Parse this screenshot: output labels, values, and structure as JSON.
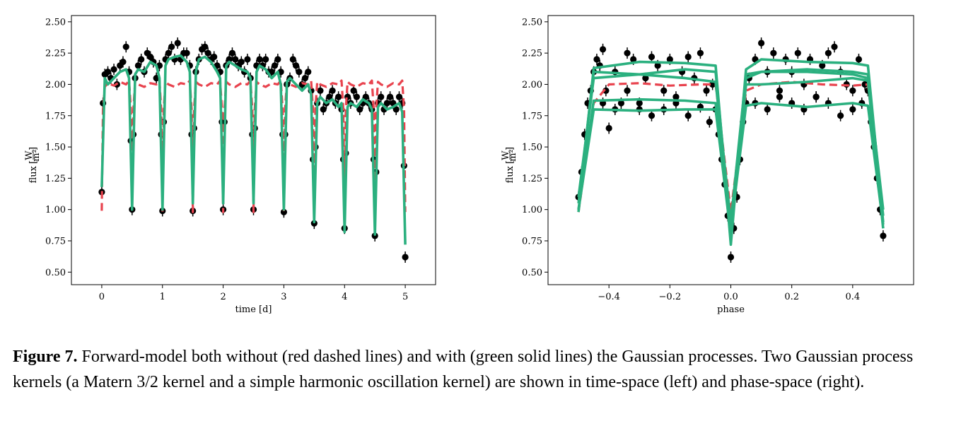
{
  "chart_data": [
    {
      "type": "scatter",
      "title": "",
      "xlabel": "time [d]",
      "ylabel": "flux [W/m²]",
      "ylabel_main": "flux",
      "ylabel_num": "W",
      "ylabel_den": "m²",
      "xlim": [
        -0.5,
        5.5
      ],
      "ylim": [
        0.4,
        2.55
      ],
      "xticks": [
        0,
        1,
        2,
        3,
        4,
        5
      ],
      "xtick_labels": [
        "0",
        "1",
        "2",
        "3",
        "4",
        "5"
      ],
      "yticks": [
        0.5,
        0.75,
        1.0,
        1.25,
        1.5,
        1.75,
        2.0,
        2.25,
        2.5
      ],
      "ytick_labels": [
        "0.50",
        "0.75",
        "1.00",
        "1.25",
        "1.50",
        "1.75",
        "2.00",
        "2.25",
        "2.50"
      ],
      "grid": false,
      "series": [
        {
          "kind": "errorbar",
          "color": "#000000",
          "x": [
            0.0,
            0.02,
            0.05,
            0.1,
            0.15,
            0.2,
            0.25,
            0.3,
            0.35,
            0.4,
            0.45,
            0.48,
            0.5,
            0.52,
            0.55,
            0.6,
            0.65,
            0.7,
            0.75,
            0.8,
            0.85,
            0.9,
            0.95,
            0.98,
            1.0,
            1.02,
            1.05,
            1.1,
            1.15,
            1.2,
            1.25,
            1.3,
            1.35,
            1.4,
            1.45,
            1.48,
            1.5,
            1.52,
            1.55,
            1.6,
            1.65,
            1.7,
            1.75,
            1.8,
            1.85,
            1.9,
            1.95,
            1.98,
            2.0,
            2.02,
            2.05,
            2.1,
            2.15,
            2.2,
            2.25,
            2.3,
            2.35,
            2.4,
            2.45,
            2.48,
            2.5,
            2.52,
            2.55,
            2.6,
            2.65,
            2.7,
            2.75,
            2.8,
            2.85,
            2.9,
            2.95,
            2.98,
            3.0,
            3.02,
            3.05,
            3.1,
            3.15,
            3.2,
            3.25,
            3.3,
            3.35,
            3.4,
            3.45,
            3.48,
            3.5,
            3.52,
            3.55,
            3.6,
            3.65,
            3.7,
            3.75,
            3.8,
            3.85,
            3.9,
            3.95,
            3.98,
            4.0,
            4.02,
            4.05,
            4.1,
            4.15,
            4.2,
            4.25,
            4.3,
            4.35,
            4.4,
            4.45,
            4.48,
            4.5,
            4.52,
            4.55,
            4.6,
            4.65,
            4.7,
            4.75,
            4.8,
            4.85,
            4.9,
            4.95,
            4.98,
            5.0
          ],
          "y": [
            1.14,
            1.85,
            2.08,
            2.1,
            2.05,
            2.12,
            2.0,
            2.15,
            2.18,
            2.3,
            2.1,
            1.55,
            1.0,
            1.6,
            2.05,
            2.15,
            2.2,
            2.1,
            2.25,
            2.22,
            2.18,
            2.05,
            2.15,
            1.6,
            0.99,
            1.7,
            2.2,
            2.25,
            2.3,
            2.2,
            2.33,
            2.2,
            2.25,
            2.25,
            2.15,
            1.6,
            0.99,
            1.65,
            2.1,
            2.2,
            2.28,
            2.3,
            2.25,
            2.2,
            2.22,
            2.15,
            2.1,
            1.7,
            1.0,
            1.7,
            2.15,
            2.2,
            2.25,
            2.2,
            2.15,
            2.18,
            2.1,
            2.2,
            2.05,
            1.6,
            1.0,
            1.65,
            2.15,
            2.2,
            2.15,
            2.2,
            2.1,
            2.1,
            2.15,
            2.2,
            2.1,
            1.6,
            0.98,
            1.6,
            2.0,
            2.05,
            2.2,
            2.15,
            2.1,
            2.0,
            2.05,
            2.1,
            1.95,
            1.4,
            0.89,
            1.5,
            1.85,
            1.95,
            1.8,
            1.85,
            1.9,
            1.95,
            1.85,
            1.9,
            1.8,
            1.4,
            0.85,
            1.45,
            1.9,
            1.85,
            1.95,
            1.9,
            1.8,
            1.85,
            1.9,
            1.85,
            1.8,
            1.4,
            0.79,
            1.3,
            1.85,
            1.9,
            1.8,
            1.85,
            1.9,
            1.85,
            1.8,
            1.9,
            1.85,
            1.35,
            0.62
          ]
        },
        {
          "kind": "line",
          "style": "dashed",
          "color": "#e8434e",
          "model": "forward",
          "x": [
            0.0,
            0.02,
            0.05,
            0.1,
            0.2,
            0.3,
            0.4,
            0.45,
            0.48,
            0.5,
            0.52,
            0.55,
            0.6,
            0.7,
            0.8,
            0.9,
            0.95,
            0.98,
            1.0,
            1.02,
            1.05,
            1.1,
            1.2,
            1.3,
            1.4,
            1.45,
            1.48,
            1.5,
            1.52,
            1.55,
            1.6,
            1.7,
            1.8,
            1.9,
            1.95,
            1.98,
            2.0,
            2.02,
            2.05,
            2.1,
            2.2,
            2.3,
            2.4,
            2.45,
            2.48,
            2.5,
            2.52,
            2.55,
            2.6,
            2.7,
            2.8,
            2.9,
            2.95,
            2.98,
            3.0,
            3.02,
            3.05,
            3.1,
            3.2,
            3.3,
            3.4,
            3.45,
            3.48,
            3.5,
            3.52,
            3.55,
            3.6,
            3.7,
            3.8,
            3.9,
            3.95,
            3.98,
            4.0,
            4.02,
            4.05,
            4.1,
            4.2,
            4.3,
            4.4,
            4.45,
            4.48,
            4.5,
            4.52,
            4.55,
            4.6,
            4.7,
            4.8,
            4.9,
            4.95,
            4.98,
            5.0
          ],
          "y": [
            0.99,
            1.8,
            1.98,
            2.01,
            1.99,
            2.02,
            2.0,
            2.03,
            1.8,
            0.98,
            1.8,
            2.02,
            2.0,
            1.98,
            2.01,
            2.0,
            2.03,
            1.8,
            0.98,
            1.8,
            2.02,
            2.0,
            1.98,
            2.01,
            2.0,
            2.03,
            1.8,
            0.98,
            1.8,
            2.02,
            2.0,
            1.98,
            2.01,
            2.0,
            2.03,
            1.8,
            0.98,
            1.8,
            2.02,
            2.0,
            1.98,
            2.01,
            2.0,
            2.03,
            1.8,
            0.98,
            1.8,
            2.02,
            2.0,
            1.98,
            2.01,
            2.0,
            2.03,
            1.8,
            0.98,
            1.8,
            2.02,
            2.0,
            1.98,
            2.01,
            2.0,
            2.03,
            1.8,
            0.98,
            1.8,
            2.02,
            2.0,
            1.98,
            2.01,
            2.0,
            2.03,
            1.8,
            0.98,
            1.8,
            2.02,
            2.0,
            1.98,
            2.01,
            2.0,
            2.03,
            1.8,
            0.98,
            1.8,
            2.02,
            2.0,
            1.98,
            2.01,
            2.0,
            2.03,
            1.8,
            0.98
          ]
        },
        {
          "kind": "line",
          "style": "solid",
          "color": "#2bb07f",
          "model": "gp",
          "x": [
            0.0,
            0.05,
            0.1,
            0.2,
            0.3,
            0.4,
            0.45,
            0.5,
            0.55,
            0.6,
            0.7,
            0.8,
            0.9,
            0.95,
            1.0,
            1.05,
            1.1,
            1.2,
            1.3,
            1.4,
            1.45,
            1.5,
            1.55,
            1.6,
            1.7,
            1.8,
            1.9,
            1.95,
            2.0,
            2.05,
            2.1,
            2.2,
            2.3,
            2.4,
            2.45,
            2.5,
            2.55,
            2.6,
            2.7,
            2.8,
            2.9,
            2.95,
            3.0,
            3.05,
            3.1,
            3.2,
            3.3,
            3.4,
            3.45,
            3.5,
            3.55,
            3.6,
            3.7,
            3.8,
            3.9,
            3.95,
            4.0,
            4.05,
            4.1,
            4.2,
            4.3,
            4.4,
            4.45,
            4.5,
            4.55,
            4.6,
            4.7,
            4.8,
            4.9,
            4.95,
            5.0
          ],
          "y": [
            1.18,
            2.05,
            2.0,
            2.05,
            2.1,
            2.12,
            2.05,
            1.0,
            2.08,
            2.12,
            2.1,
            2.18,
            2.15,
            2.05,
            1.0,
            2.15,
            2.2,
            2.22,
            2.23,
            2.18,
            2.1,
            1.05,
            2.1,
            2.2,
            2.22,
            2.18,
            2.1,
            2.05,
            1.05,
            2.15,
            2.18,
            2.15,
            2.12,
            2.1,
            2.05,
            1.05,
            2.1,
            2.15,
            2.12,
            2.05,
            2.1,
            2.0,
            1.0,
            2.02,
            2.05,
            2.0,
            1.95,
            2.0,
            1.92,
            0.9,
            1.85,
            1.9,
            1.85,
            1.88,
            1.82,
            1.85,
            0.82,
            1.82,
            1.85,
            1.82,
            1.88,
            1.85,
            1.8,
            0.8,
            1.82,
            1.85,
            1.8,
            1.82,
            1.85,
            1.78,
            0.72
          ]
        }
      ]
    },
    {
      "type": "scatter",
      "title": "",
      "xlabel": "phase",
      "ylabel": "flux [W/m²]",
      "ylabel_main": "flux",
      "ylabel_num": "W",
      "ylabel_den": "m²",
      "xlim": [
        -0.6,
        0.6
      ],
      "ylim": [
        0.4,
        2.55
      ],
      "xticks": [
        -0.4,
        -0.2,
        0.0,
        0.2,
        0.4
      ],
      "xtick_labels": [
        "−0.4",
        "−0.2",
        "0.0",
        "0.2",
        "0.4"
      ],
      "yticks": [
        0.5,
        0.75,
        1.0,
        1.25,
        1.5,
        1.75,
        2.0,
        2.25,
        2.5
      ],
      "ytick_labels": [
        "0.50",
        "0.75",
        "1.00",
        "1.25",
        "1.50",
        "1.75",
        "2.00",
        "2.25",
        "2.50"
      ],
      "grid": false,
      "series": [
        {
          "kind": "errorbar",
          "color": "#000000",
          "x": [
            -0.5,
            -0.49,
            -0.48,
            -0.47,
            -0.46,
            -0.45,
            -0.44,
            -0.43,
            -0.42,
            -0.41,
            -0.4,
            -0.38,
            -0.36,
            -0.34,
            -0.32,
            -0.3,
            -0.28,
            -0.26,
            -0.24,
            -0.22,
            -0.2,
            -0.18,
            -0.16,
            -0.14,
            -0.12,
            -0.1,
            -0.08,
            -0.06,
            -0.05,
            -0.04,
            -0.03,
            -0.02,
            -0.01,
            0.0,
            0.01,
            0.02,
            0.03,
            0.04,
            0.05,
            0.06,
            0.08,
            0.1,
            0.12,
            0.14,
            0.16,
            0.18,
            0.2,
            0.22,
            0.24,
            0.26,
            0.28,
            0.3,
            0.32,
            0.34,
            0.36,
            0.38,
            0.4,
            0.42,
            0.44,
            0.45,
            0.46,
            0.47,
            0.48,
            0.49,
            0.5,
            -0.42,
            -0.38,
            -0.34,
            -0.3,
            -0.26,
            -0.22,
            -0.18,
            -0.14,
            -0.1,
            -0.07,
            0.08,
            0.12,
            0.16,
            0.2,
            0.24,
            0.28,
            0.32,
            0.36,
            0.4,
            0.43
          ],
          "y": [
            1.1,
            1.3,
            1.6,
            1.85,
            1.95,
            2.1,
            2.2,
            2.15,
            2.28,
            1.95,
            1.65,
            2.1,
            1.85,
            2.25,
            2.2,
            1.8,
            2.05,
            2.22,
            2.15,
            1.95,
            2.2,
            1.9,
            2.1,
            2.22,
            2.05,
            2.25,
            1.95,
            2.0,
            1.8,
            1.6,
            1.4,
            1.2,
            0.95,
            0.62,
            0.85,
            1.1,
            1.4,
            1.7,
            1.85,
            2.05,
            2.2,
            2.33,
            2.1,
            2.25,
            1.95,
            2.2,
            2.1,
            2.25,
            2.0,
            2.2,
            1.9,
            2.15,
            2.25,
            2.3,
            2.1,
            2.0,
            1.95,
            2.2,
            2.0,
            1.95,
            1.7,
            1.5,
            1.25,
            1.0,
            0.79,
            1.85,
            1.8,
            1.95,
            1.85,
            1.75,
            1.8,
            1.85,
            1.75,
            1.82,
            1.7,
            1.85,
            1.8,
            1.9,
            1.85,
            1.8,
            1.9,
            1.85,
            1.75,
            1.8,
            1.85
          ]
        },
        {
          "kind": "line",
          "style": "dashed",
          "color": "#e8434e",
          "model": "forward",
          "x": [
            -0.5,
            -0.45,
            -0.4,
            -0.3,
            -0.2,
            -0.1,
            -0.05,
            0.0,
            0.05,
            0.1,
            0.2,
            0.3,
            0.4,
            0.45,
            0.5
          ],
          "y": [
            0.98,
            1.85,
            2.0,
            2.01,
            1.99,
            2.0,
            2.0,
            0.98,
            1.95,
            2.0,
            2.02,
            2.0,
            1.99,
            2.0,
            0.98
          ]
        },
        {
          "kind": "line",
          "style": "solid",
          "color": "#2bb07f",
          "model": "gp-1",
          "x": [
            -0.5,
            -0.45,
            -0.3,
            -0.15,
            -0.05,
            0.0,
            0.05,
            0.1,
            0.25,
            0.4,
            0.45,
            0.5
          ],
          "y": [
            0.98,
            2.13,
            2.18,
            2.17,
            2.15,
            0.72,
            2.12,
            2.2,
            2.18,
            2.17,
            2.15,
            0.9
          ]
        },
        {
          "kind": "line",
          "style": "solid",
          "color": "#2bb07f",
          "model": "gp-2",
          "x": [
            -0.5,
            -0.45,
            -0.3,
            -0.15,
            -0.05,
            0.0,
            0.05,
            0.1,
            0.25,
            0.4,
            0.45,
            0.5
          ],
          "y": [
            1.05,
            2.1,
            2.08,
            2.12,
            2.1,
            0.82,
            2.05,
            2.1,
            2.12,
            2.1,
            2.08,
            0.95
          ]
        },
        {
          "kind": "line",
          "style": "solid",
          "color": "#2bb07f",
          "model": "gp-3",
          "x": [
            -0.5,
            -0.45,
            -0.3,
            -0.15,
            -0.05,
            0.0,
            0.05,
            0.1,
            0.25,
            0.4,
            0.45,
            0.5
          ],
          "y": [
            1.0,
            1.87,
            1.88,
            1.87,
            1.85,
            0.85,
            1.83,
            1.85,
            1.82,
            1.85,
            1.83,
            0.88
          ]
        },
        {
          "kind": "line",
          "style": "solid",
          "color": "#2bb07f",
          "model": "gp-4",
          "x": [
            -0.5,
            -0.45,
            -0.3,
            -0.15,
            -0.05,
            0.0,
            0.05,
            0.1,
            0.25,
            0.4,
            0.45,
            0.5
          ],
          "y": [
            1.0,
            1.8,
            1.79,
            1.8,
            1.8,
            0.8,
            2.0,
            2.0,
            2.02,
            2.05,
            2.03,
            0.85
          ]
        },
        {
          "kind": "line",
          "style": "solid",
          "color": "#2bb07f",
          "model": "gp-5",
          "x": [
            -0.5,
            -0.45,
            -0.3,
            -0.15,
            -0.05,
            0.0,
            0.05,
            0.1,
            0.25,
            0.4,
            0.45,
            0.5
          ],
          "y": [
            1.1,
            2.05,
            2.08,
            2.05,
            2.02,
            0.9,
            2.08,
            2.1,
            2.1,
            2.08,
            2.05,
            1.0
          ]
        }
      ]
    }
  ],
  "caption": {
    "label": "Figure 7.",
    "text": "Forward-model both without (red dashed lines) and with (green solid lines) the Gaussian processes. Two Gaussian process kernels (a Matern 3/2 kernel and a simple harmonic oscillation kernel) are shown in time-space (left) and phase-space (right)."
  }
}
